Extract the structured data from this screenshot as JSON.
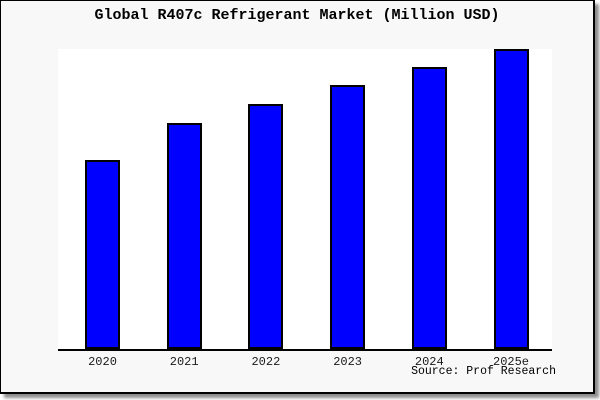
{
  "chart_data": {
    "type": "bar",
    "title": "Global R407c Refrigerant Market (Million USD)",
    "categories": [
      "2020",
      "2021",
      "2022",
      "2023",
      "2024",
      "2025e"
    ],
    "values": [
      63,
      75.3,
      81.7,
      88,
      94,
      100
    ],
    "xlabel": "",
    "ylabel": "",
    "ylim": [
      0,
      100
    ],
    "value_basis": "relative bar heights, tallest bar (2025e) = 100; no y-axis scale shown in image",
    "grid": false,
    "legend_position": "none",
    "y_axis_visible": false,
    "tick_marks_visible": false
  },
  "source": {
    "label": "Source: Prof Research"
  },
  "colors": {
    "frame_background": "#f8f8f8",
    "plot_background": "#ffffff",
    "bar_fill": "#0000ff",
    "bar_border": "#000000",
    "axis_line": "#000000",
    "frame_border": "#000000",
    "shadow": "#777777",
    "title_text": "#000000",
    "tick_text": "#1a1a1a"
  }
}
